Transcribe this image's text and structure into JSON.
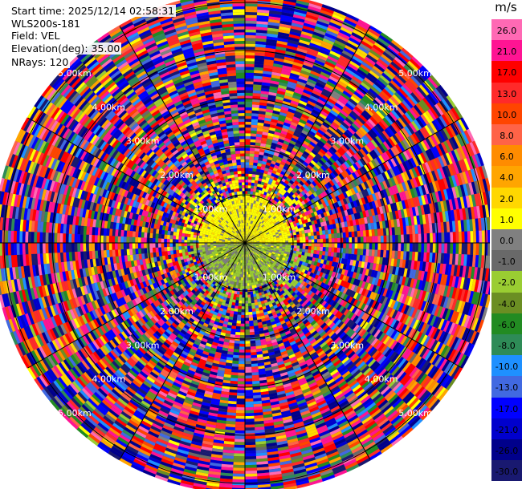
{
  "info": {
    "start_time": "Start time: 2025/12/14 02:58:31",
    "instrument": "WLS200s-181",
    "field": "Field: VEL",
    "elevation": "Elevation(deg): 35.00",
    "nrays": "NRays: 120"
  },
  "colorbar": {
    "unit": "m/s",
    "labels": [
      "26.0",
      "21.0",
      "17.0",
      "13.0",
      "10.0",
      "8.0",
      "6.0",
      "4.0",
      "2.0",
      "1.0",
      "0.0",
      "-1.0",
      "-2.0",
      "-4.0",
      "-6.0",
      "-8.0",
      "-10.0",
      "-13.0",
      "-17.0",
      "-21.0",
      "-26.0",
      "-30.0"
    ],
    "colors": [
      "#ff69b4",
      "#ff1493",
      "#ff0000",
      "#ff2a2a",
      "#ff4500",
      "#ff6347",
      "#ff8c00",
      "#ffa500",
      "#ffd700",
      "#ffff00",
      "#808080",
      "#696969",
      "#9acd32",
      "#6b8e23",
      "#228b22",
      "#2e8b57",
      "#1e90ff",
      "#4169e1",
      "#0000ff",
      "#0000cd",
      "#00008b",
      "#191970"
    ]
  },
  "chart_data": {
    "type": "polar PPI",
    "field": "VEL",
    "units": "m/s",
    "elevation_deg": 35.0,
    "n_rays": 120,
    "range_ring_labels": [
      "1.00km",
      "2.00km",
      "3.00km",
      "4.00km",
      "5.00km"
    ],
    "range_rings_km": [
      1,
      2,
      3,
      4,
      5
    ],
    "max_range_km": 5.2,
    "velocity_range": [
      -30,
      30
    ],
    "note_inner": "Within ~1 km: upper half mostly 1 to 2 m/s (yellow), lower half mostly -1 to -2 m/s (olive/green) and 0 (gray); beyond ~1 km: noisy values spanning full scale"
  }
}
